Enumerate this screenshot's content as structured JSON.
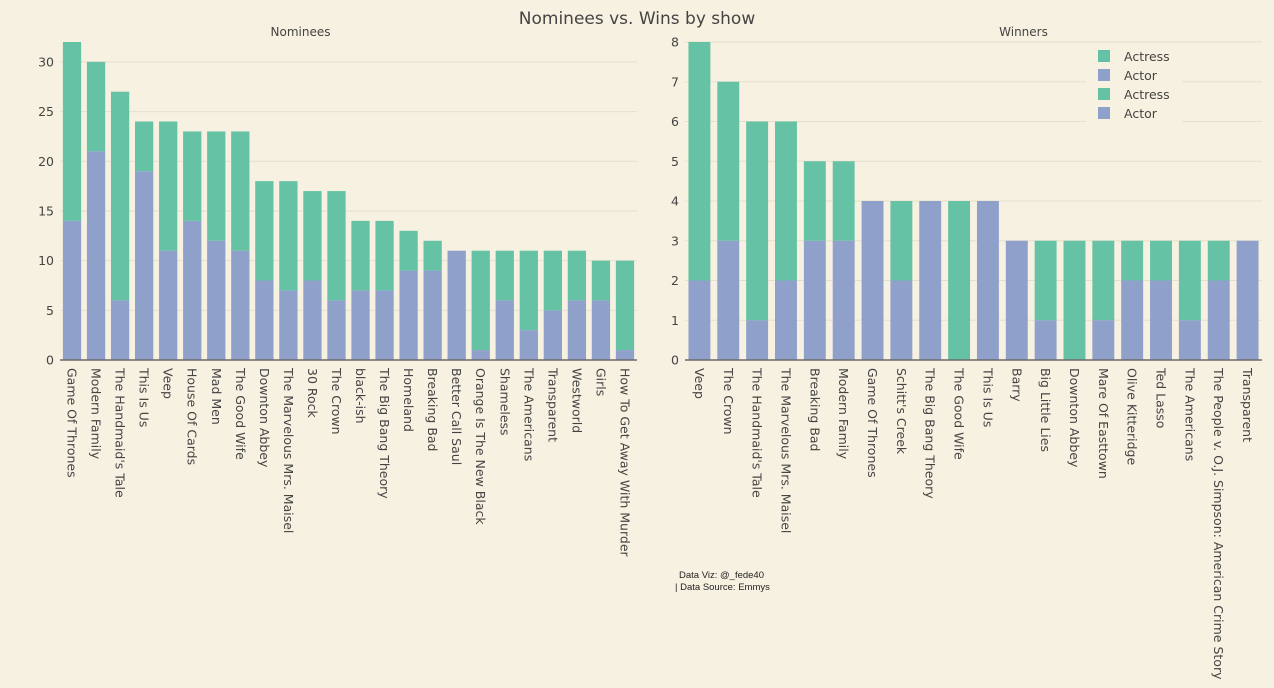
{
  "title": "Nominees vs. Wins by show",
  "credits": [
    "Data Viz: @_fede40",
    "| Data Source: Emmys"
  ],
  "colors": {
    "actor": "#8fa0cb",
    "actress": "#66c2a4",
    "grid": "#e6dfcd",
    "axis": "#6b6b6b"
  },
  "legend": [
    {
      "label": "Actress",
      "color": "#66c2a4"
    },
    {
      "label": "Actor",
      "color": "#8fa0cb"
    },
    {
      "label": "Actress",
      "color": "#66c2a4"
    },
    {
      "label": "Actor",
      "color": "#8fa0cb"
    }
  ],
  "chart_data": [
    {
      "type": "bar",
      "stacked": true,
      "title": "Nominees",
      "ylim": [
        0,
        32
      ],
      "yticks": [
        0,
        5,
        10,
        15,
        20,
        25,
        30
      ],
      "grid": true,
      "categories": [
        "Game Of Thrones",
        "Modern Family",
        "The Handmaid's Tale",
        "This Is Us",
        "Veep",
        "House Of Cards",
        "Mad Men",
        "The Good Wife",
        "Downton Abbey",
        "The Marvelous Mrs. Maisel",
        "30 Rock",
        "The Crown",
        "black-ish",
        "The Big Bang Theory",
        "Homeland",
        "Breaking Bad",
        "Better Call Saul",
        "Orange Is The New Black",
        "Shameless",
        "The Americans",
        "Transparent",
        "Westworld",
        "Girls",
        "How To Get Away With Murder"
      ],
      "series": [
        {
          "name": "Actor",
          "values": [
            14,
            21,
            6,
            19,
            11,
            14,
            12,
            11,
            8,
            7,
            8,
            6,
            7,
            7,
            9,
            9,
            11,
            1,
            6,
            3,
            5,
            6,
            6,
            1
          ]
        },
        {
          "name": "Actress",
          "values": [
            18,
            9,
            21,
            5,
            13,
            9,
            11,
            12,
            10,
            11,
            9,
            11,
            7,
            7,
            4,
            3,
            0,
            10,
            5,
            8,
            6,
            5,
            4,
            9
          ]
        }
      ]
    },
    {
      "type": "bar",
      "stacked": true,
      "title": "Winners",
      "ylim": [
        0,
        8
      ],
      "yticks": [
        0,
        1,
        2,
        3,
        4,
        5,
        6,
        7,
        8
      ],
      "grid": true,
      "legend_position": "top-right",
      "categories": [
        "Veep",
        "The Crown",
        "The Handmaid's Tale",
        "The Marvelous Mrs. Maisel",
        "Breaking Bad",
        "Modern Family",
        "Game Of Thrones",
        "Schitt's Creek",
        "The Big Bang Theory",
        "The Good Wife",
        "This Is Us",
        "Barry",
        "Big Little Lies",
        "Downton Abbey",
        "Mare Of Easttown",
        "Olive Kitteridge",
        "Ted Lasso",
        "The Americans",
        "The People v. O.J. Simpson: American Crime Story",
        "Transparent"
      ],
      "series": [
        {
          "name": "Actor",
          "values": [
            2,
            3,
            1,
            2,
            3,
            3,
            4,
            2,
            4,
            0,
            4,
            3,
            1,
            0,
            1,
            2,
            2,
            1,
            2,
            3
          ]
        },
        {
          "name": "Actress",
          "values": [
            6,
            4,
            5,
            4,
            2,
            2,
            0,
            2,
            0,
            4,
            0,
            0,
            2,
            3,
            2,
            1,
            1,
            2,
            1,
            0
          ]
        }
      ]
    }
  ]
}
